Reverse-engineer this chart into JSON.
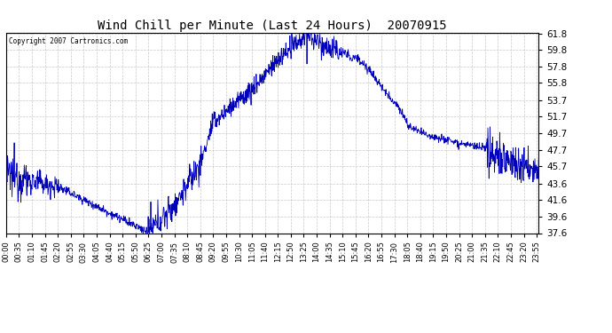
{
  "title": "Wind Chill per Minute (Last 24 Hours)  20070915",
  "copyright": "Copyright 2007 Cartronics.com",
  "yticks": [
    37.6,
    39.6,
    41.6,
    43.6,
    45.7,
    47.7,
    49.7,
    51.7,
    53.7,
    55.8,
    57.8,
    59.8,
    61.8
  ],
  "ymin": 37.6,
  "ymax": 61.8,
  "line_color": "#0000bb",
  "bg_color": "#ffffff",
  "grid_color": "#bbbbbb",
  "title_color": "#000000",
  "xtick_labels": [
    "00:00",
    "00:35",
    "01:10",
    "01:45",
    "02:20",
    "02:55",
    "03:30",
    "04:05",
    "04:40",
    "05:15",
    "05:50",
    "06:25",
    "07:00",
    "07:35",
    "08:10",
    "08:45",
    "09:20",
    "09:55",
    "10:30",
    "11:05",
    "11:40",
    "12:15",
    "12:50",
    "13:25",
    "14:00",
    "14:35",
    "15:10",
    "15:45",
    "16:20",
    "16:55",
    "17:30",
    "18:05",
    "18:40",
    "19:15",
    "19:50",
    "20:25",
    "21:00",
    "21:35",
    "22:10",
    "22:45",
    "23:20",
    "23:55"
  ],
  "num_points": 1440,
  "figwidth": 6.9,
  "figheight": 3.75,
  "dpi": 100
}
